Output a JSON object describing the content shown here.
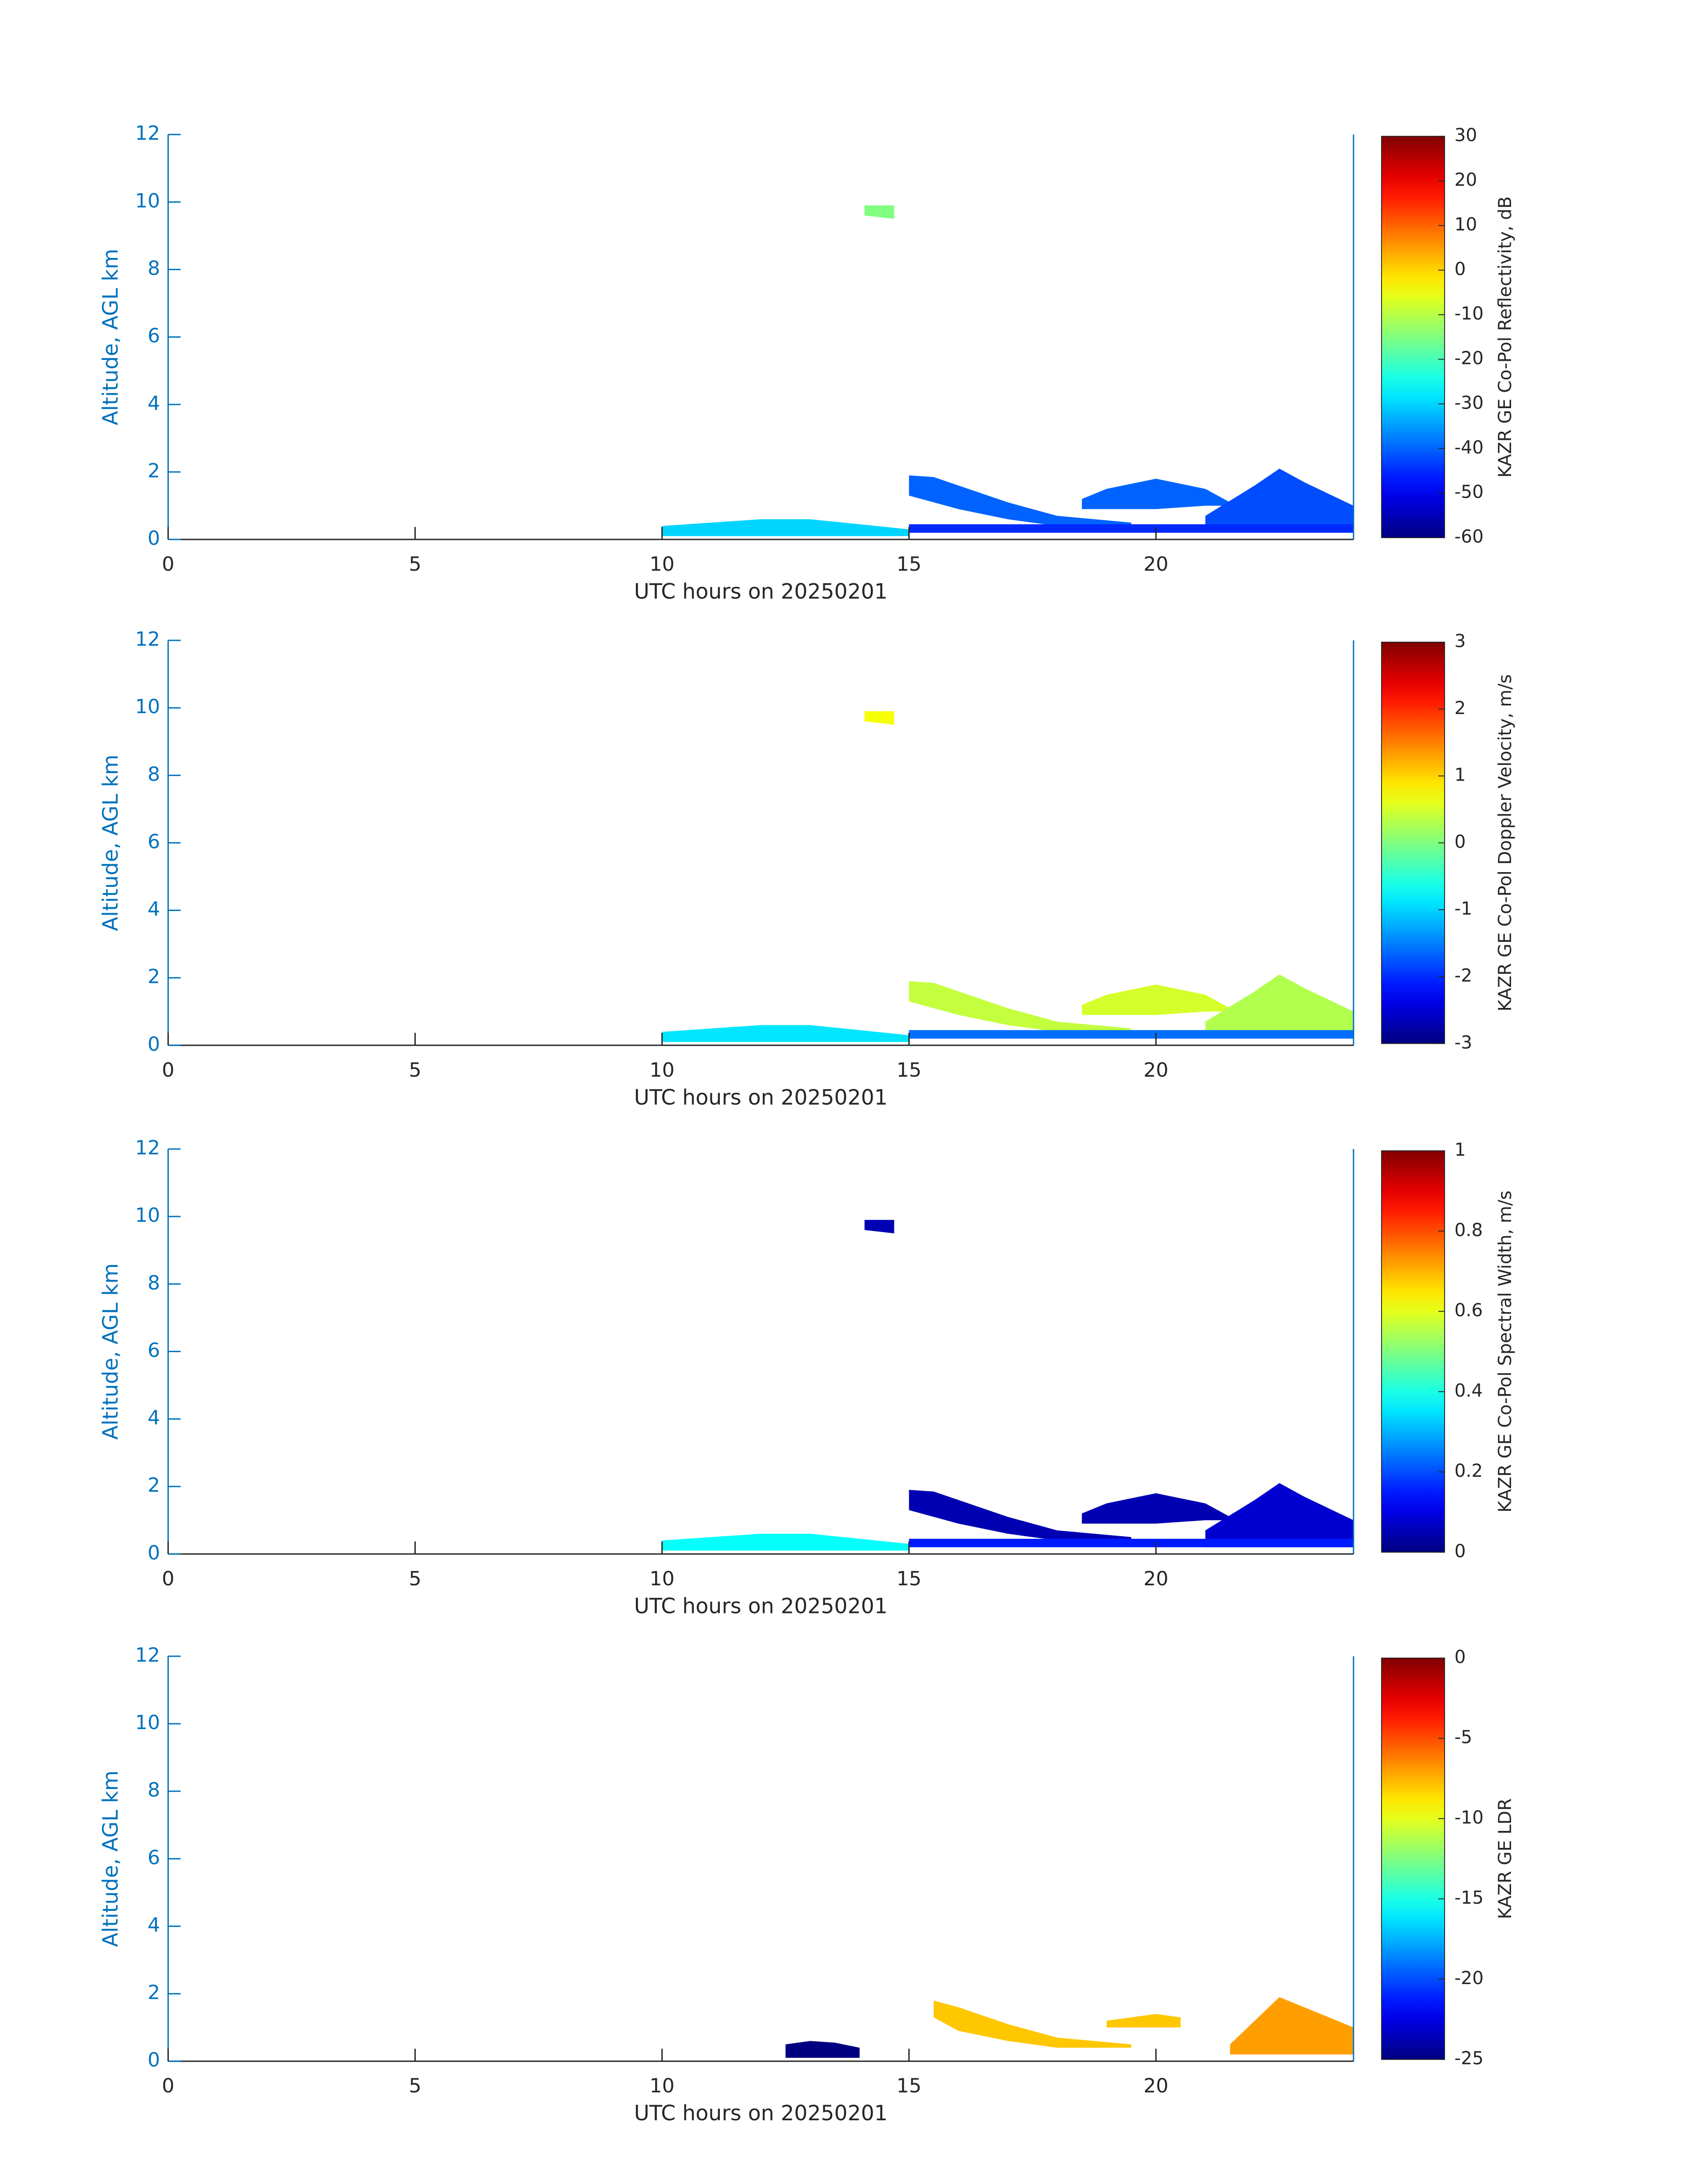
{
  "chart_data": [
    {
      "type": "time-height",
      "xlabel": "UTC hours on 20250201",
      "ylabel": "Altitude, AGL km",
      "colorbar_label": "KAZR GE Co-Pol Reflectivity, dB",
      "colormap": "jet",
      "xlim": [
        0,
        24
      ],
      "xticks": [
        0,
        5,
        10,
        15,
        20
      ],
      "ylim": [
        0,
        12
      ],
      "yticks": [
        0,
        2,
        4,
        6,
        8,
        10,
        12
      ],
      "clim": [
        -60,
        30
      ],
      "cticks": [
        -60,
        -50,
        -40,
        -30,
        -20,
        -10,
        0,
        10,
        20,
        30
      ],
      "regions": [
        {
          "x": [
            10,
            11,
            12,
            13,
            14,
            15
          ],
          "top": [
            0.4,
            0.5,
            0.6,
            0.6,
            0.45,
            0.3
          ],
          "bottom": [
            0.1,
            0.1,
            0.1,
            0.1,
            0.1,
            0.1
          ],
          "value": -30
        },
        {
          "x": [
            15,
            15.5,
            16,
            17,
            18,
            19.5
          ],
          "top": [
            1.9,
            1.85,
            1.6,
            1.1,
            0.7,
            0.5
          ],
          "bottom": [
            1.3,
            1.1,
            0.9,
            0.6,
            0.4,
            0.4
          ],
          "value": -40
        },
        {
          "x": [
            18.5,
            19,
            20,
            21,
            21.5
          ],
          "top": [
            1.2,
            1.5,
            1.8,
            1.5,
            1.1
          ],
          "bottom": [
            0.9,
            0.9,
            0.9,
            1,
            1
          ],
          "value": -40
        },
        {
          "x": [
            21,
            22,
            22.5,
            23,
            24
          ],
          "top": [
            0.7,
            1.6,
            2.1,
            1.7,
            1
          ],
          "bottom": [
            0.2,
            0.2,
            0.2,
            0.2,
            0.2
          ],
          "value": -42
        },
        {
          "x": [
            15,
            24
          ],
          "top": [
            0.45,
            0.45
          ],
          "bottom": [
            0.2,
            0.2
          ],
          "value": -45
        },
        {
          "x": [
            14.1,
            14.7
          ],
          "top": [
            9.9,
            9.9
          ],
          "bottom": [
            9.6,
            9.5
          ],
          "value": -15
        }
      ]
    },
    {
      "type": "time-height",
      "xlabel": "UTC hours on 20250201",
      "ylabel": "Altitude, AGL km",
      "colorbar_label": "KAZR GE Co-Pol Doppler Velocity, m/s",
      "colormap": "jet",
      "xlim": [
        0,
        24
      ],
      "xticks": [
        0,
        5,
        10,
        15,
        20
      ],
      "ylim": [
        0,
        12
      ],
      "yticks": [
        0,
        2,
        4,
        6,
        8,
        10,
        12
      ],
      "clim": [
        -3,
        3
      ],
      "cticks": [
        -3,
        -2,
        -1,
        0,
        1,
        2,
        3
      ],
      "regions": [
        {
          "x": [
            10,
            11,
            12,
            13,
            14,
            15
          ],
          "top": [
            0.4,
            0.5,
            0.6,
            0.6,
            0.45,
            0.3
          ],
          "bottom": [
            0.1,
            0.1,
            0.1,
            0.1,
            0.1,
            0.1
          ],
          "value": -0.9
        },
        {
          "x": [
            15,
            15.5,
            16,
            17,
            18,
            19.5
          ],
          "top": [
            1.9,
            1.85,
            1.6,
            1.1,
            0.7,
            0.5
          ],
          "bottom": [
            1.3,
            1.1,
            0.9,
            0.6,
            0.4,
            0.4
          ],
          "value": 0.4
        },
        {
          "x": [
            18.5,
            19,
            20,
            21,
            21.5
          ],
          "top": [
            1.2,
            1.5,
            1.8,
            1.5,
            1.1
          ],
          "bottom": [
            0.9,
            0.9,
            0.9,
            1,
            1
          ],
          "value": 0.5
        },
        {
          "x": [
            21,
            22,
            22.5,
            23,
            24
          ],
          "top": [
            0.7,
            1.6,
            2.1,
            1.7,
            1
          ],
          "bottom": [
            0.2,
            0.2,
            0.2,
            0.2,
            0.2
          ],
          "value": 0.3
        },
        {
          "x": [
            15,
            24
          ],
          "top": [
            0.45,
            0.45
          ],
          "bottom": [
            0.2,
            0.2
          ],
          "value": -1.6
        },
        {
          "x": [
            14.1,
            14.7
          ],
          "top": [
            9.9,
            9.9
          ],
          "bottom": [
            9.6,
            9.5
          ],
          "value": 0.7
        }
      ]
    },
    {
      "type": "time-height",
      "xlabel": "UTC hours on 20250201",
      "ylabel": "Altitude, AGL km",
      "colorbar_label": "KAZR GE Co-Pol Spectral Width, m/s",
      "colormap": "jet",
      "xlim": [
        0,
        24
      ],
      "xticks": [
        0,
        5,
        10,
        15,
        20
      ],
      "ylim": [
        0,
        12
      ],
      "yticks": [
        0,
        2,
        4,
        6,
        8,
        10,
        12
      ],
      "clim": [
        0,
        1
      ],
      "cticks": [
        0,
        0.2,
        0.4,
        0.6,
        0.8,
        1
      ],
      "regions": [
        {
          "x": [
            10,
            11,
            12,
            13,
            14,
            15
          ],
          "top": [
            0.4,
            0.5,
            0.6,
            0.6,
            0.45,
            0.3
          ],
          "bottom": [
            0.1,
            0.1,
            0.1,
            0.1,
            0.1,
            0.1
          ],
          "value": 0.38
        },
        {
          "x": [
            15,
            15.5,
            16,
            17,
            18,
            19.5
          ],
          "top": [
            1.9,
            1.85,
            1.6,
            1.1,
            0.7,
            0.5
          ],
          "bottom": [
            1.3,
            1.1,
            0.9,
            0.6,
            0.4,
            0.4
          ],
          "value": 0.05
        },
        {
          "x": [
            18.5,
            19,
            20,
            21,
            21.5
          ],
          "top": [
            1.2,
            1.5,
            1.8,
            1.5,
            1.1
          ],
          "bottom": [
            0.9,
            0.9,
            0.9,
            1,
            1
          ],
          "value": 0.05
        },
        {
          "x": [
            21,
            22,
            22.5,
            23,
            24
          ],
          "top": [
            0.7,
            1.6,
            2.1,
            1.7,
            1
          ],
          "bottom": [
            0.2,
            0.2,
            0.2,
            0.2,
            0.2
          ],
          "value": 0.08
        },
        {
          "x": [
            15,
            24
          ],
          "top": [
            0.45,
            0.45
          ],
          "bottom": [
            0.2,
            0.2
          ],
          "value": 0.15
        },
        {
          "x": [
            14.1,
            14.7
          ],
          "top": [
            9.9,
            9.9
          ],
          "bottom": [
            9.6,
            9.5
          ],
          "value": 0.05
        }
      ]
    },
    {
      "type": "time-height",
      "xlabel": "UTC hours on 20250201",
      "ylabel": "Altitude, AGL km",
      "colorbar_label": "KAZR GE LDR",
      "colormap": "jet",
      "xlim": [
        0,
        24
      ],
      "xticks": [
        0,
        5,
        10,
        15,
        20
      ],
      "ylim": [
        0,
        12
      ],
      "yticks": [
        0,
        2,
        4,
        6,
        8,
        10,
        12
      ],
      "clim": [
        -25,
        0
      ],
      "cticks": [
        -25,
        -20,
        -15,
        -10,
        -5,
        0
      ],
      "regions": [
        {
          "x": [
            12.5,
            13,
            13.5,
            14
          ],
          "top": [
            0.5,
            0.6,
            0.55,
            0.4
          ],
          "bottom": [
            0.1,
            0.1,
            0.1,
            0.1
          ],
          "value": -25
        },
        {
          "x": [
            15.5,
            16,
            17,
            18,
            19.5
          ],
          "top": [
            1.8,
            1.6,
            1.1,
            0.7,
            0.5
          ],
          "bottom": [
            1.3,
            0.9,
            0.6,
            0.4,
            0.4
          ],
          "value": -8
        },
        {
          "x": [
            19,
            20,
            20.5
          ],
          "top": [
            1.2,
            1.4,
            1.3
          ],
          "bottom": [
            1,
            1,
            1
          ],
          "value": -8
        },
        {
          "x": [
            21.5,
            22,
            22.5,
            23,
            24
          ],
          "top": [
            0.5,
            1.2,
            1.9,
            1.6,
            1
          ],
          "bottom": [
            0.2,
            0.2,
            0.2,
            0.2,
            0.2
          ],
          "value": -7
        }
      ]
    }
  ]
}
